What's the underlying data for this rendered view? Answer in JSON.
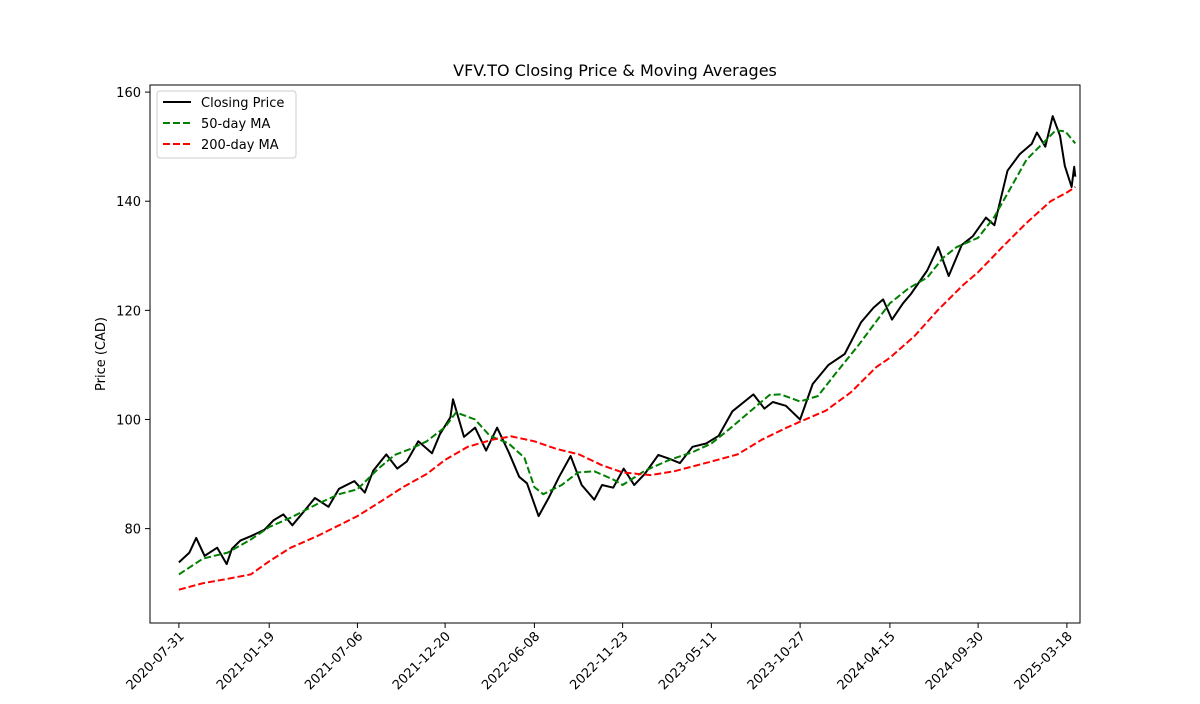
{
  "chart_data": {
    "type": "line",
    "title": "VFV.TO Closing Price & Moving Averages",
    "xlabel": "",
    "ylabel": "Price (CAD)",
    "x_range": [
      "2020-06-06",
      "2025-04-12"
    ],
    "ylim": [
      62.7,
      161.3
    ],
    "x_ticks": [
      "2020-07-31",
      "2021-01-19",
      "2021-07-06",
      "2021-12-20",
      "2022-06-08",
      "2022-11-23",
      "2023-05-11",
      "2023-10-27",
      "2024-04-15",
      "2024-09-30",
      "2025-03-18"
    ],
    "y_ticks": [
      80,
      100,
      120,
      140,
      160
    ],
    "grid": false,
    "legend_position": "top-left",
    "series": [
      {
        "name": "Closing Price",
        "color": "#000000",
        "style": "solid",
        "points": [
          [
            "2020-07-31",
            73.8
          ],
          [
            "2020-08-20",
            75.6
          ],
          [
            "2020-09-02",
            78.3
          ],
          [
            "2020-09-18",
            75.0
          ],
          [
            "2020-10-12",
            76.5
          ],
          [
            "2020-10-30",
            73.5
          ],
          [
            "2020-11-09",
            76.3
          ],
          [
            "2020-11-25",
            77.8
          ],
          [
            "2020-12-15",
            78.6
          ],
          [
            "2021-01-10",
            79.8
          ],
          [
            "2021-01-27",
            81.5
          ],
          [
            "2021-02-15",
            82.6
          ],
          [
            "2021-03-04",
            80.6
          ],
          [
            "2021-03-25",
            83.0
          ],
          [
            "2021-04-16",
            85.6
          ],
          [
            "2021-05-12",
            84.0
          ],
          [
            "2021-06-01",
            87.3
          ],
          [
            "2021-06-30",
            88.7
          ],
          [
            "2021-07-20",
            86.6
          ],
          [
            "2021-08-05",
            90.6
          ],
          [
            "2021-08-30",
            93.6
          ],
          [
            "2021-09-20",
            91.0
          ],
          [
            "2021-10-08",
            92.3
          ],
          [
            "2021-10-30",
            96.0
          ],
          [
            "2021-11-25",
            93.8
          ],
          [
            "2021-12-10",
            97.3
          ],
          [
            "2021-12-30",
            100.4
          ],
          [
            "2022-01-04",
            103.7
          ],
          [
            "2022-01-25",
            96.8
          ],
          [
            "2022-02-15",
            98.5
          ],
          [
            "2022-03-08",
            94.3
          ],
          [
            "2022-03-29",
            98.5
          ],
          [
            "2022-04-20",
            94.0
          ],
          [
            "2022-05-10",
            89.5
          ],
          [
            "2022-05-25",
            88.3
          ],
          [
            "2022-06-16",
            82.3
          ],
          [
            "2022-07-05",
            85.6
          ],
          [
            "2022-07-25",
            89.5
          ],
          [
            "2022-08-16",
            93.3
          ],
          [
            "2022-09-06",
            88.0
          ],
          [
            "2022-09-30",
            85.3
          ],
          [
            "2022-10-15",
            88.0
          ],
          [
            "2022-11-05",
            87.5
          ],
          [
            "2022-11-25",
            91.0
          ],
          [
            "2022-12-15",
            88.0
          ],
          [
            "2023-01-04",
            90.0
          ],
          [
            "2023-01-30",
            93.5
          ],
          [
            "2023-02-20",
            92.8
          ],
          [
            "2023-03-12",
            92.0
          ],
          [
            "2023-04-05",
            95.0
          ],
          [
            "2023-05-01",
            95.6
          ],
          [
            "2023-05-25",
            97.0
          ],
          [
            "2023-06-20",
            101.5
          ],
          [
            "2023-07-30",
            104.6
          ],
          [
            "2023-08-20",
            102.0
          ],
          [
            "2023-09-05",
            103.2
          ],
          [
            "2023-09-30",
            102.5
          ],
          [
            "2023-10-27",
            100.0
          ],
          [
            "2023-11-20",
            106.5
          ],
          [
            "2023-12-20",
            110.0
          ],
          [
            "2024-01-20",
            112.0
          ],
          [
            "2024-02-20",
            117.8
          ],
          [
            "2024-03-15",
            120.5
          ],
          [
            "2024-04-02",
            122.0
          ],
          [
            "2024-04-19",
            118.3
          ],
          [
            "2024-05-10",
            121.3
          ],
          [
            "2024-05-25",
            123.0
          ],
          [
            "2024-06-25",
            127.3
          ],
          [
            "2024-07-16",
            131.6
          ],
          [
            "2024-08-05",
            126.3
          ],
          [
            "2024-08-30",
            132.0
          ],
          [
            "2024-09-20",
            133.6
          ],
          [
            "2024-10-15",
            137.0
          ],
          [
            "2024-10-31",
            135.6
          ],
          [
            "2024-11-25",
            145.6
          ],
          [
            "2024-12-18",
            148.6
          ],
          [
            "2025-01-10",
            150.5
          ],
          [
            "2025-01-20",
            152.6
          ],
          [
            "2025-02-05",
            150.0
          ],
          [
            "2025-02-19",
            155.6
          ],
          [
            "2025-03-05",
            152.0
          ],
          [
            "2025-03-14",
            146.5
          ],
          [
            "2025-03-27",
            142.6
          ],
          [
            "2025-04-01",
            146.3
          ],
          [
            "2025-04-03",
            144.5
          ]
        ]
      },
      {
        "name": "50-day MA",
        "color": "#008000",
        "style": "dashed",
        "points": [
          [
            "2020-07-31",
            71.6
          ],
          [
            "2020-09-15",
            74.5
          ],
          [
            "2020-11-01",
            75.6
          ],
          [
            "2020-12-15",
            78.0
          ],
          [
            "2021-01-19",
            80.3
          ],
          [
            "2021-03-01",
            82.0
          ],
          [
            "2021-04-20",
            84.5
          ],
          [
            "2021-06-01",
            86.3
          ],
          [
            "2021-07-06",
            87.2
          ],
          [
            "2021-08-15",
            91.0
          ],
          [
            "2021-09-15",
            93.5
          ],
          [
            "2021-10-15",
            94.6
          ],
          [
            "2021-11-15",
            96.0
          ],
          [
            "2021-12-20",
            98.6
          ],
          [
            "2022-01-10",
            101.3
          ],
          [
            "2022-02-15",
            100.0
          ],
          [
            "2022-03-15",
            97.0
          ],
          [
            "2022-04-20",
            95.6
          ],
          [
            "2022-05-20",
            93.0
          ],
          [
            "2022-06-08",
            87.6
          ],
          [
            "2022-06-25",
            86.3
          ],
          [
            "2022-07-30",
            88.0
          ],
          [
            "2022-08-30",
            90.3
          ],
          [
            "2022-09-30",
            90.5
          ],
          [
            "2022-11-05",
            89.0
          ],
          [
            "2022-11-23",
            88.0
          ],
          [
            "2023-01-04",
            90.6
          ],
          [
            "2023-02-20",
            92.6
          ],
          [
            "2023-04-05",
            94.0
          ],
          [
            "2023-05-11",
            95.6
          ],
          [
            "2023-06-15",
            98.3
          ],
          [
            "2023-07-30",
            102.0
          ],
          [
            "2023-08-30",
            104.5
          ],
          [
            "2023-09-20",
            104.6
          ],
          [
            "2023-10-27",
            103.3
          ],
          [
            "2023-11-30",
            104.3
          ],
          [
            "2024-01-04",
            108.6
          ],
          [
            "2024-02-15",
            113.6
          ],
          [
            "2024-03-20",
            118.0
          ],
          [
            "2024-04-15",
            121.3
          ],
          [
            "2024-05-20",
            124.0
          ],
          [
            "2024-06-25",
            126.0
          ],
          [
            "2024-07-25",
            129.6
          ],
          [
            "2024-08-20",
            131.6
          ],
          [
            "2024-09-30",
            133.3
          ],
          [
            "2024-10-30",
            137.0
          ],
          [
            "2024-11-30",
            142.3
          ],
          [
            "2024-12-31",
            147.6
          ],
          [
            "2025-01-31",
            150.6
          ],
          [
            "2025-02-25",
            153.0
          ],
          [
            "2025-03-15",
            152.8
          ],
          [
            "2025-04-03",
            150.6
          ]
        ]
      },
      {
        "name": "200-day MA",
        "color": "#ff0000",
        "style": "dashed",
        "points": [
          [
            "2020-07-31",
            68.8
          ],
          [
            "2020-09-15",
            70.0
          ],
          [
            "2020-11-01",
            70.8
          ],
          [
            "2020-12-15",
            71.6
          ],
          [
            "2021-01-19",
            74.0
          ],
          [
            "2021-03-01",
            76.5
          ],
          [
            "2021-04-20",
            78.6
          ],
          [
            "2021-06-01",
            80.6
          ],
          [
            "2021-07-06",
            82.3
          ],
          [
            "2021-08-20",
            85.0
          ],
          [
            "2021-10-01",
            87.6
          ],
          [
            "2021-11-15",
            90.0
          ],
          [
            "2021-12-20",
            92.6
          ],
          [
            "2022-02-01",
            95.0
          ],
          [
            "2022-03-20",
            96.3
          ],
          [
            "2022-04-25",
            96.9
          ],
          [
            "2022-06-08",
            96.0
          ],
          [
            "2022-07-20",
            94.6
          ],
          [
            "2022-09-01",
            93.6
          ],
          [
            "2022-10-15",
            91.6
          ],
          [
            "2022-11-23",
            90.3
          ],
          [
            "2023-01-15",
            89.8
          ],
          [
            "2023-03-01",
            90.5
          ],
          [
            "2023-05-11",
            92.3
          ],
          [
            "2023-06-30",
            93.6
          ],
          [
            "2023-08-15",
            96.3
          ],
          [
            "2023-10-01",
            98.5
          ],
          [
            "2023-10-27",
            99.6
          ],
          [
            "2023-12-15",
            101.6
          ],
          [
            "2024-02-01",
            105.0
          ],
          [
            "2024-03-20",
            109.6
          ],
          [
            "2024-04-15",
            111.3
          ],
          [
            "2024-06-01",
            115.3
          ],
          [
            "2024-07-15",
            120.0
          ],
          [
            "2024-09-01",
            124.6
          ],
          [
            "2024-09-30",
            127.0
          ],
          [
            "2024-11-15",
            131.6
          ],
          [
            "2024-12-31",
            136.0
          ],
          [
            "2025-02-15",
            140.0
          ],
          [
            "2025-03-18",
            141.6
          ],
          [
            "2025-04-03",
            142.6
          ]
        ]
      }
    ]
  }
}
